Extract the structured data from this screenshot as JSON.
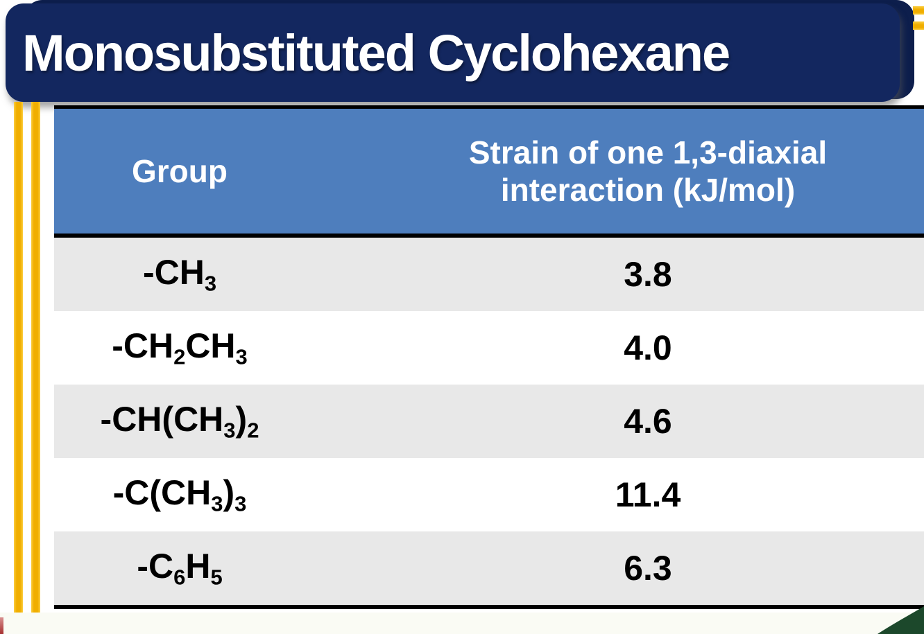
{
  "slide": {
    "title": "Monosubstituted Cyclohexane"
  },
  "table": {
    "columns": [
      "Group",
      "Strain of one 1,3-diaxial interaction (kJ/mol)"
    ],
    "rows": [
      {
        "group": [
          {
            "t": "-CH"
          },
          {
            "t": "3",
            "sub": true
          }
        ],
        "value": "3.8"
      },
      {
        "group": [
          {
            "t": "-CH"
          },
          {
            "t": "2",
            "sub": true
          },
          {
            "t": "CH"
          },
          {
            "t": "3",
            "sub": true
          }
        ],
        "value": "4.0"
      },
      {
        "group": [
          {
            "t": "-CH(CH"
          },
          {
            "t": "3",
            "sub": true
          },
          {
            "t": ")"
          },
          {
            "t": "2",
            "sub": true
          }
        ],
        "value": "4.6"
      },
      {
        "group": [
          {
            "t": "-C(CH"
          },
          {
            "t": "3",
            "sub": true
          },
          {
            "t": ")"
          },
          {
            "t": "3",
            "sub": true
          }
        ],
        "value": "11.4"
      },
      {
        "group": [
          {
            "t": "-C"
          },
          {
            "t": "6",
            "sub": true
          },
          {
            "t": "H"
          },
          {
            "t": "5",
            "sub": true
          }
        ],
        "value": "6.3"
      }
    ]
  },
  "colors": {
    "banner_navy": "#13275F",
    "banner_back_navy": "#0D1E4C",
    "header_blue": "#4E7EBD",
    "row_shaded_gray": "#E8E8E8",
    "accent_stripe_gold": "#F0AE00",
    "corner_swoosh_green": "#1C482B",
    "corner_accent_red": "#A63030",
    "table_border_black": "#000000",
    "title_text": "#FFFFFF"
  }
}
